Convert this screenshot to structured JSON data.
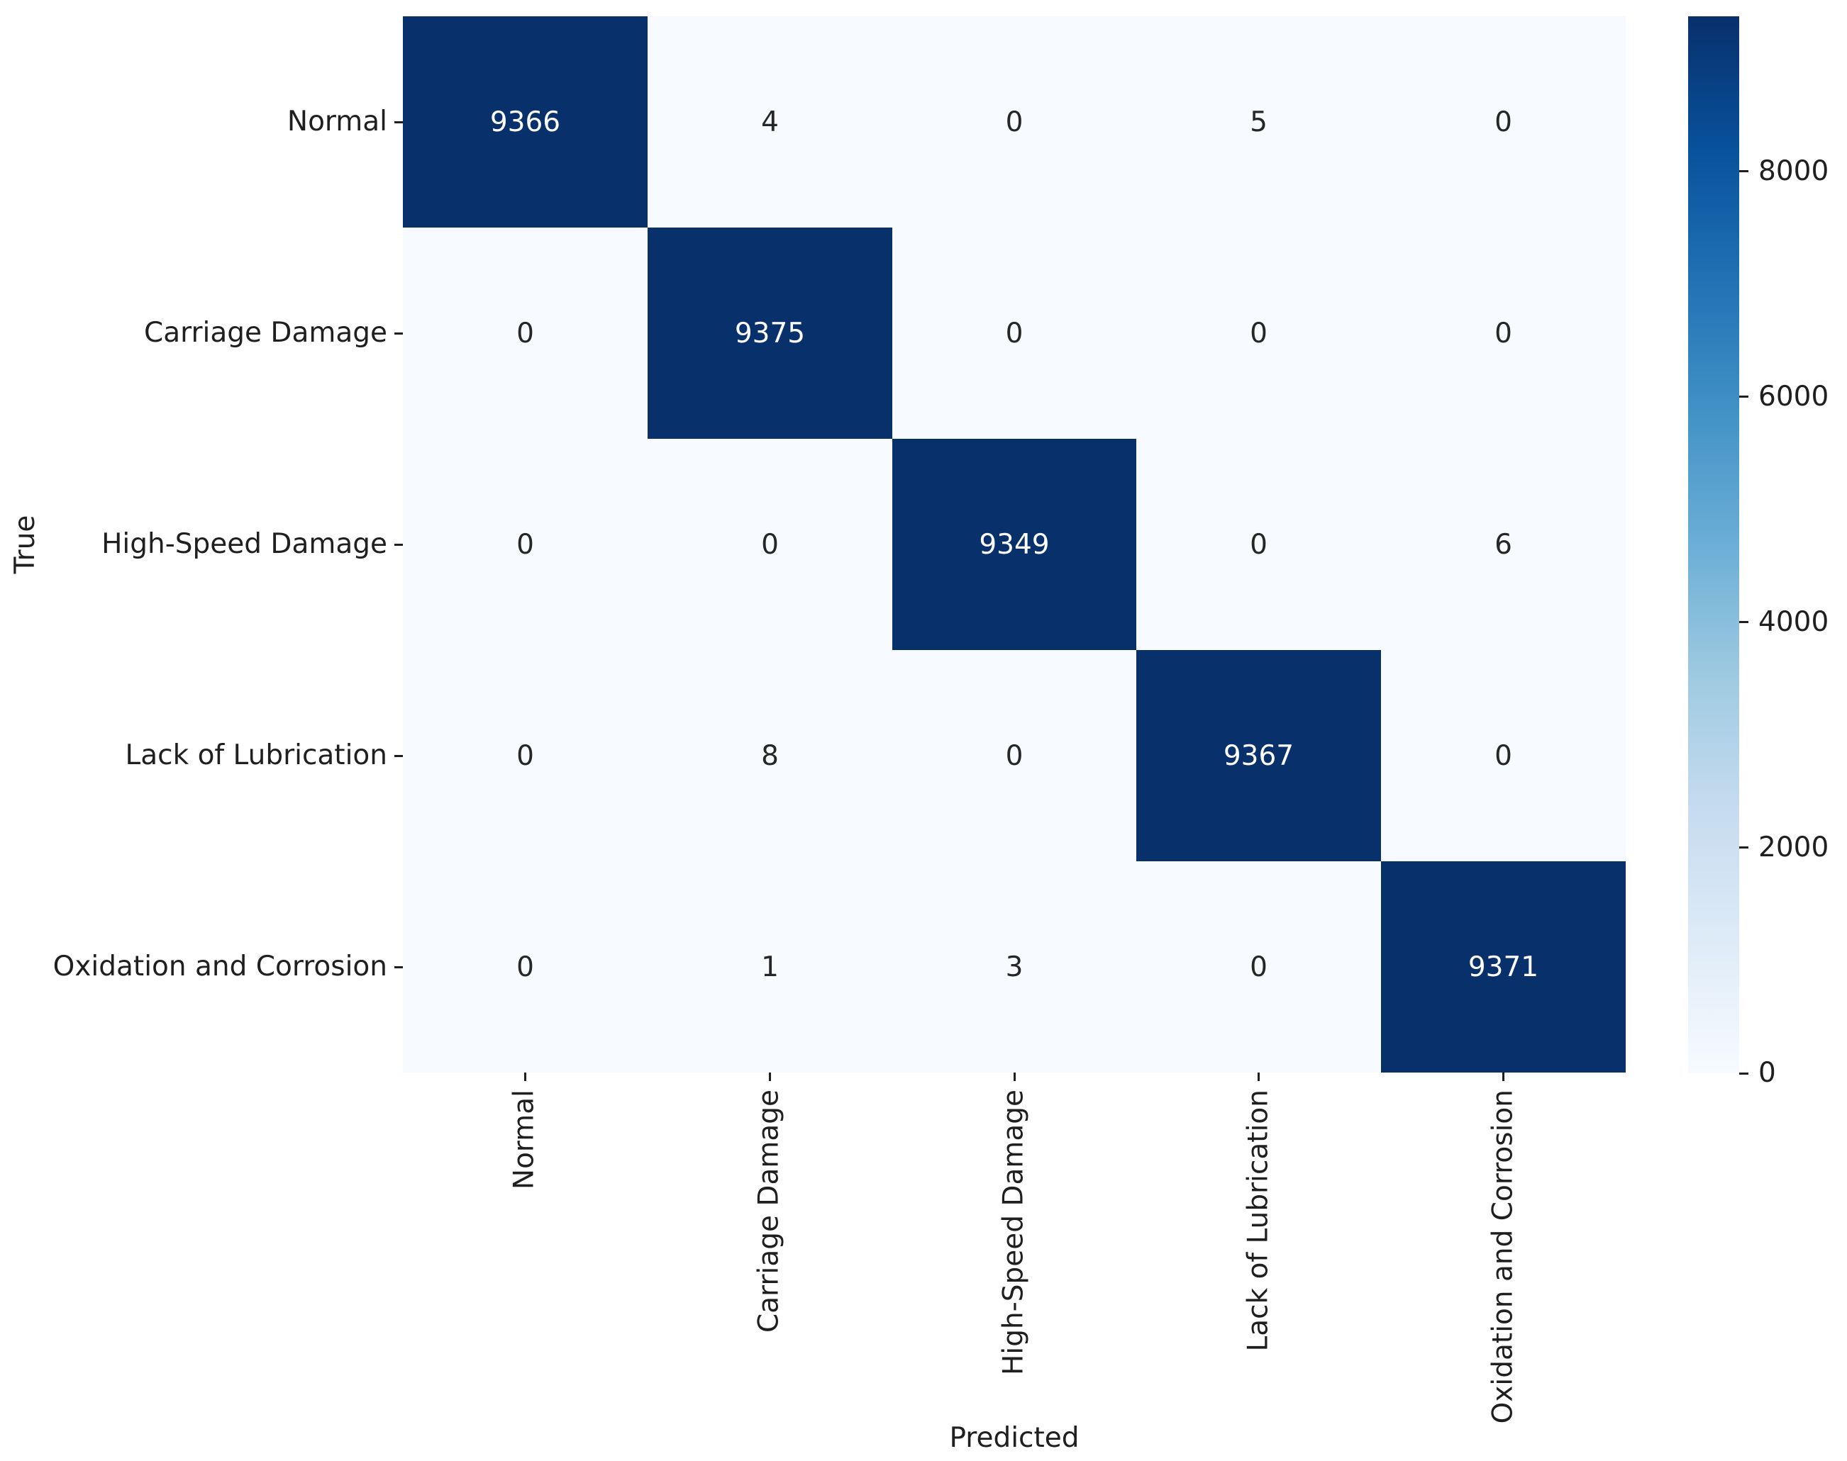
{
  "figure": {
    "background": "#ffffff",
    "text_color": "#1f1f1f"
  },
  "chart_data": {
    "type": "heatmap",
    "title": "",
    "xlabel": "Predicted",
    "ylabel": "True",
    "x_categories": [
      "Normal",
      "Carriage Damage",
      "High-Speed Damage",
      "Lack of Lubrication",
      "Oxidation and Corrosion"
    ],
    "y_categories": [
      "Normal",
      "Carriage Damage",
      "High-Speed Damage",
      "Lack of Lubrication",
      "Oxidation and Corrosion"
    ],
    "matrix": [
      [
        9366,
        4,
        0,
        5,
        0
      ],
      [
        0,
        9375,
        0,
        0,
        0
      ],
      [
        0,
        0,
        9349,
        0,
        6
      ],
      [
        0,
        8,
        0,
        9367,
        0
      ],
      [
        0,
        1,
        3,
        0,
        9371
      ]
    ],
    "vmin": 0,
    "vmax": 9375,
    "grid": false,
    "legend_position": "right-colorbar",
    "colormap": "Blues",
    "colormap_stops": [
      "#f7fbff",
      "#deebf7",
      "#c6dbef",
      "#9ecae1",
      "#6baed6",
      "#4292c6",
      "#2171b5",
      "#08519c",
      "#08306b"
    ],
    "colorbar_ticks": [
      0,
      2000,
      4000,
      6000,
      8000
    ],
    "annotation_color_on_light": "#262626",
    "annotation_color_on_dark": "#ffffff",
    "axis_text_color": "#1f1f1f"
  }
}
